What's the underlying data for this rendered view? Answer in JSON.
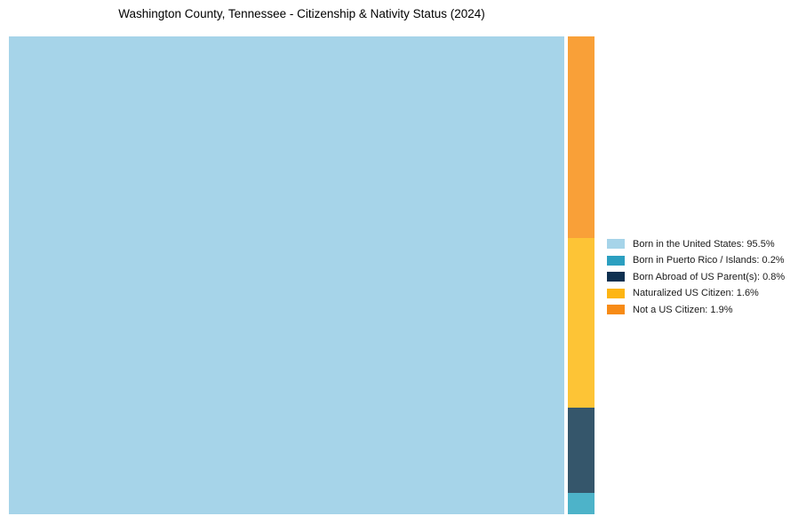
{
  "title": "Washington County, Tennessee - Citizenship & Nativity Status (2024)",
  "chart_data": {
    "type": "treemap",
    "title": "Washington County, Tennessee - Citizenship & Nativity Status (2024)",
    "unit": "%",
    "legend_position": "right",
    "grid": false,
    "items": [
      {
        "label": "Born in the United States",
        "value": 95.5,
        "legend_label": "Born in the United States: 95.5%",
        "color": "#a6d4e9",
        "tile_fill": "#a6d4e9"
      },
      {
        "label": "Born in Puerto Rico / Islands",
        "value": 0.2,
        "legend_label": "Born in Puerto Rico / Islands: 0.2%",
        "color": "#2b9fc0",
        "tile_fill": "#4db3c9"
      },
      {
        "label": "Born Abroad of US Parent(s)",
        "value": 0.8,
        "legend_label": "Born Abroad of US Parent(s): 0.8%",
        "color": "#0e3050",
        "tile_fill": "#35566b"
      },
      {
        "label": "Naturalized US Citizen",
        "value": 1.6,
        "legend_label": "Naturalized US Citizen: 1.6%",
        "color": "#fdb513",
        "tile_fill": "#fdc436"
      },
      {
        "label": "Not a US Citizen",
        "value": 1.9,
        "legend_label": "Not a US Citizen: 1.9%",
        "color": "#f78b16",
        "tile_fill": "#f9a038"
      }
    ]
  }
}
